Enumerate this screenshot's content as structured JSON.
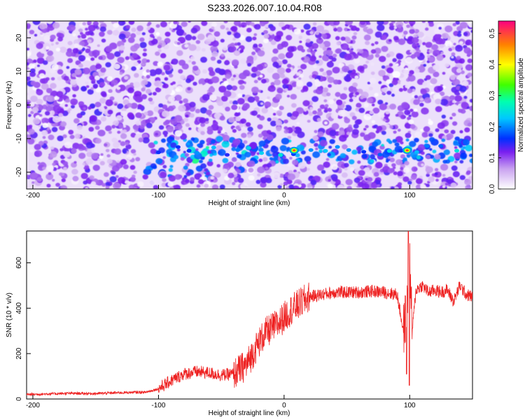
{
  "figure": {
    "title": "S233.2026.007.10.04.R08"
  },
  "chart_data": [
    {
      "type": "heatmap",
      "xlabel": "Height of straight line (km)",
      "ylabel": "Frequency (Hz)",
      "xlim": [
        -205,
        150
      ],
      "ylim": [
        -25,
        25
      ],
      "xticks": [
        -200,
        -100,
        0,
        100
      ],
      "yticks": [
        -20,
        -10,
        0,
        10,
        20
      ],
      "colorbar": {
        "label": "Normalized spectral amplitude",
        "range": [
          0.0,
          0.54
        ],
        "ticks": [
          "0.0",
          "0.1",
          "0.2",
          "0.3",
          "0.4",
          "0.5"
        ]
      },
      "grid": false,
      "features": [
        {
          "x_range": [
            -105,
            150
          ],
          "frequency": -13.5,
          "description_band": true
        },
        {
          "x": 8,
          "y": -13.5,
          "amplitude": 0.5
        },
        {
          "x": 98,
          "y": -13.5,
          "amplitude": 0.5
        }
      ]
    },
    {
      "type": "line",
      "xlabel": "Height of straight line (km)",
      "ylabel": "SNR (10 * v/v)",
      "xlim": [
        -205,
        150
      ],
      "ylim": [
        0,
        740
      ],
      "xticks": [
        -200,
        -100,
        0,
        100
      ],
      "yticks": [
        0,
        200,
        400,
        600
      ],
      "grid": false,
      "line_color": "#ee2222",
      "series": [
        {
          "x": [
            -205,
            -190,
            -170,
            -150,
            -130,
            -110,
            -100,
            -90,
            -80,
            -70,
            -60,
            -50,
            -40,
            -30,
            -25,
            -20,
            -15,
            -10,
            -5,
            0,
            5,
            10,
            15,
            20,
            30,
            40,
            50,
            60,
            70,
            80,
            90,
            95,
            98,
            100,
            102,
            105,
            110,
            115,
            120,
            125,
            130,
            135,
            140,
            145,
            150
          ],
          "values": [
            20,
            22,
            25,
            24,
            28,
            30,
            45,
            80,
            110,
            120,
            115,
            105,
            110,
            150,
            200,
            250,
            290,
            310,
            330,
            360,
            390,
            410,
            430,
            450,
            460,
            470,
            470,
            470,
            475,
            470,
            460,
            300,
            400,
            600,
            300,
            480,
            500,
            470,
            480,
            470,
            480,
            430,
            500,
            460,
            450
          ]
        }
      ]
    }
  ]
}
